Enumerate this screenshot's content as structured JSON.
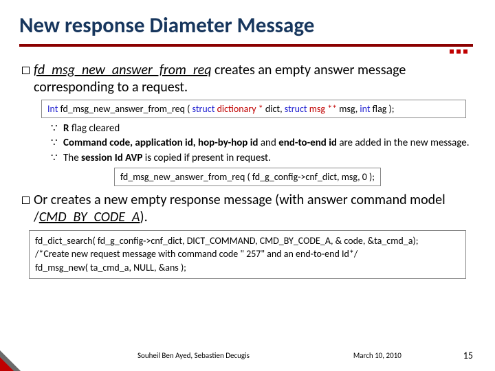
{
  "title": "New response Diameter Message",
  "p1": {
    "func": "fd_msg_new_answer_from_req",
    "tail": " creates an empty answer message corresponding to a request."
  },
  "sig1": {
    "int": "Int",
    "name": " fd_msg_new_answer_from_req ( ",
    "s1": "struct",
    "d1": " dictionary *",
    "a1": " dict, ",
    "s2": "struct",
    "d2": " msg **",
    "a2": " msg, ",
    "s3": "int",
    "a3": " flag );"
  },
  "sub": {
    "i1a": "R",
    "i1b": " flag cleared",
    "i2a": "Command code, application id, hop-by-hop id",
    "i2b": " and ",
    "i2c": "end-to-end id",
    "i2d": " are added in the new message.",
    "i3a": "The ",
    "i3b": "session Id AVP",
    "i3c": " is copied if present in request."
  },
  "call1": "fd_msg_new_answer_from_req ( fd_g_config->cnf_dict, msg, 0 );",
  "p2": {
    "pre": " Or creates a new empty response message (with answer command model /",
    "cmd": "CMD_BY_CODE_A",
    "post": ")."
  },
  "code2": {
    "l1": "fd_dict_search( fd_g_config->cnf_dict, DICT_COMMAND, CMD_BY_CODE_A, & code, &ta_cmd_a);",
    "l2": "/*Create new request message with command code \" 257\" and  an end-to-end Id*/",
    "l3": "fd_msg_new( ta_cmd_a, NULL, &ans );"
  },
  "footer": {
    "authors": "Souheil Ben Ayed, Sebastien Decugis",
    "date": "March 10, 2010",
    "page": "15"
  },
  "colors": {
    "title": "#17365d",
    "rule": "#8b0000",
    "accent": "#c00000",
    "kw_blue": "#2020d0",
    "kw_red": "#c00000"
  }
}
